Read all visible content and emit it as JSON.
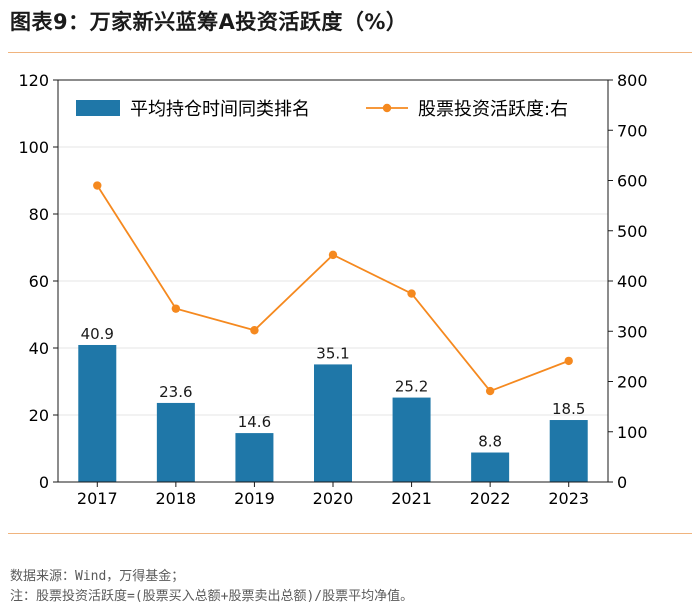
{
  "title": "图表9：万家新兴蓝筹A投资活跃度（%）",
  "footnotes": {
    "source": "数据来源：Wind，万得基金；",
    "note": "注：股票投资活跃度=(股票买入总额+股票卖出总额)/股票平均净值。"
  },
  "colors": {
    "bar": "#1f77a8",
    "line": "#f5891f",
    "rule": "#f0b47e"
  },
  "chart_data": {
    "type": "bar+line",
    "categories": [
      "2017",
      "2018",
      "2019",
      "2020",
      "2021",
      "2022",
      "2023"
    ],
    "series": [
      {
        "name": "平均持仓时间同类排名",
        "type": "bar",
        "axis": "left",
        "values": [
          40.9,
          23.6,
          14.6,
          35.1,
          25.2,
          8.8,
          18.5
        ],
        "labels": [
          "40.9",
          "23.6",
          "14.6",
          "35.1",
          "25.2",
          "8.8",
          "18.5"
        ]
      },
      {
        "name": "股票投资活跃度:右",
        "type": "line",
        "axis": "right",
        "values": [
          590,
          345,
          302,
          452,
          375,
          181,
          241
        ]
      }
    ],
    "y_left": {
      "min": 0,
      "max": 120,
      "ticks": [
        "0",
        "20",
        "40",
        "60",
        "80",
        "100",
        "120"
      ]
    },
    "y_right": {
      "min": 0,
      "max": 800,
      "ticks": [
        "0",
        "100",
        "200",
        "300",
        "400",
        "500",
        "600",
        "700",
        "800"
      ]
    },
    "grid": true,
    "legend": "top"
  }
}
